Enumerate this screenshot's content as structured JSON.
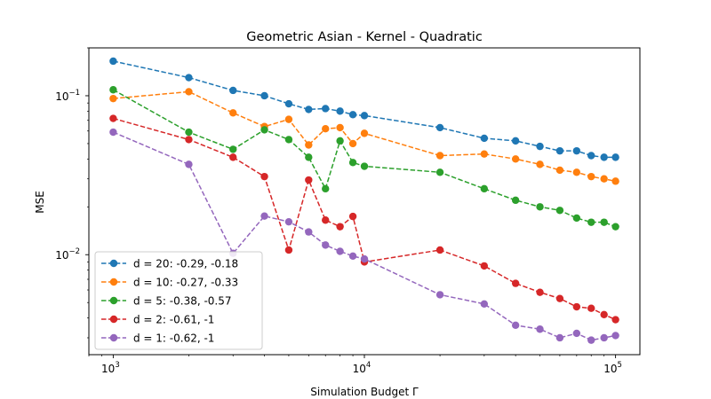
{
  "chart_data": {
    "type": "line",
    "title": "Geometric Asian - Kernel - Quadratic",
    "xlabel": "Simulation Budget Γ",
    "ylabel": "MSE",
    "xscale": "log",
    "yscale": "log",
    "xlim": [
      800,
      125000
    ],
    "ylim": [
      0.00235,
      0.2
    ],
    "x": [
      1000,
      2000,
      3000,
      4000,
      5000,
      6000,
      7000,
      8000,
      9000,
      10000,
      20000,
      30000,
      40000,
      50000,
      60000,
      70000,
      80000,
      90000,
      100000
    ],
    "x_ticks": [
      {
        "value": 1000,
        "base": "10",
        "exp": "3"
      },
      {
        "value": 10000,
        "base": "10",
        "exp": "4"
      },
      {
        "value": 100000,
        "base": "10",
        "exp": "5"
      }
    ],
    "y_ticks": [
      {
        "value": 0.01,
        "base": "10",
        "exp": "−2"
      },
      {
        "value": 0.1,
        "base": "10",
        "exp": "−1"
      }
    ],
    "grid": false,
    "legend_position": "lower-left",
    "series": [
      {
        "name": "d = 20: -0.29, -0.18",
        "color": "#1f77b4",
        "values": [
          0.165,
          0.13,
          0.108,
          0.1,
          0.089,
          0.082,
          0.083,
          0.08,
          0.076,
          0.075,
          0.063,
          0.054,
          0.052,
          0.048,
          0.045,
          0.045,
          0.042,
          0.041,
          0.041
        ]
      },
      {
        "name": "d = 10: -0.27, -0.33",
        "color": "#ff7f0e",
        "values": [
          0.096,
          0.106,
          0.078,
          0.064,
          0.071,
          0.049,
          0.062,
          0.063,
          0.05,
          0.058,
          0.042,
          0.043,
          0.04,
          0.037,
          0.034,
          0.033,
          0.031,
          0.03,
          0.029
        ]
      },
      {
        "name": "d = 5: -0.38, -0.57",
        "color": "#2ca02c",
        "values": [
          0.109,
          0.059,
          0.046,
          0.061,
          0.053,
          0.041,
          0.026,
          0.052,
          0.038,
          0.036,
          0.033,
          0.026,
          0.022,
          0.02,
          0.019,
          0.017,
          0.016,
          0.016,
          0.015
        ]
      },
      {
        "name": "d = 2: -0.61, -1",
        "color": "#d62728",
        "values": [
          0.072,
          0.053,
          0.041,
          0.031,
          0.0107,
          0.0295,
          0.0165,
          0.015,
          0.0174,
          0.009,
          0.0107,
          0.0085,
          0.0066,
          0.0058,
          0.0053,
          0.0047,
          0.0046,
          0.0042,
          0.0039
        ]
      },
      {
        "name": "d = 1: -0.62, -1",
        "color": "#9467bd",
        "values": [
          0.059,
          0.037,
          0.0102,
          0.0175,
          0.0161,
          0.0139,
          0.0115,
          0.0105,
          0.0098,
          0.0094,
          0.0056,
          0.0049,
          0.0036,
          0.0034,
          0.003,
          0.0032,
          0.0029,
          0.003,
          0.0031
        ]
      }
    ]
  }
}
